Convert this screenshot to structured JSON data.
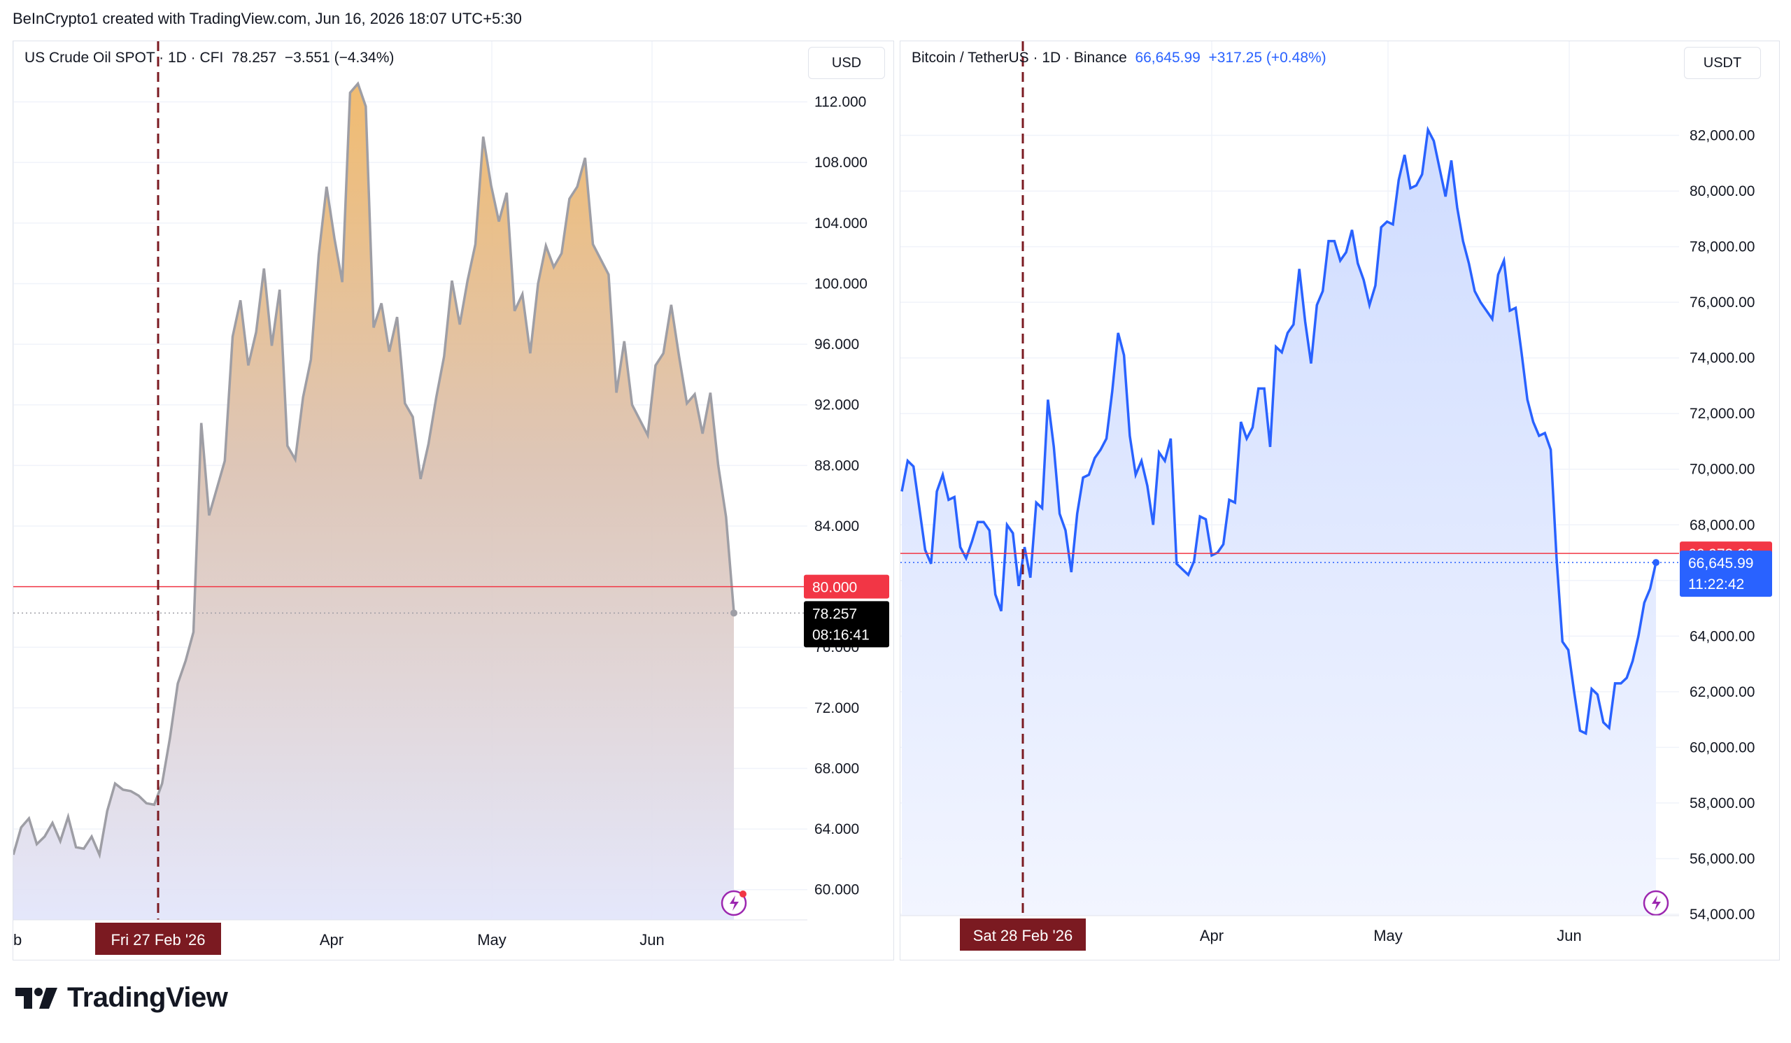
{
  "credit": "BeInCrypto1 created with TradingView.com, Jun 16, 2026 18:07 UTC+5:30",
  "brand": "TradingView",
  "colors": {
    "oil_line": "#9e9ea5",
    "oil_top": "#f0b869",
    "oil_bottom": "#e3e6fb",
    "btc_line": "#2962ff",
    "btc_fill": "#dbe4ff",
    "ref_line": "#f23645",
    "vline": "#7b1a21",
    "price_tag_dark": "#000000",
    "price_tag_blue": "#2962ff"
  },
  "oil": {
    "title": "US Crude Oil SPOT · 1D · CFI",
    "price": "78.257",
    "change": "−3.551 (−4.34%)",
    "currency": "USD",
    "ref_label": "80.000",
    "last_label": "78.257",
    "countdown": "08:16:41",
    "event_date": "Fri 27 Feb '26",
    "x_labels": [
      "eb",
      "Apr",
      "May",
      "Jun"
    ]
  },
  "btc": {
    "title": "Bitcoin / TetherUS · 1D · Binance",
    "price": "66,645.99",
    "change": "+317.25 (+0.48%)",
    "currency": "USDT",
    "ref_label": "66,973.00",
    "last_label": "66,645.99",
    "countdown": "11:22:42",
    "event_date": "Sat 28 Feb '26",
    "x_labels": [
      "Apr",
      "May",
      "Jun"
    ]
  },
  "chart_data": [
    {
      "type": "area",
      "title": "US Crude Oil SPOT · 1D · CFI",
      "currency": "USD",
      "ylim": [
        58,
        116
      ],
      "y_ticks": [
        "60.000",
        "64.000",
        "68.000",
        "72.000",
        "76.000",
        "80.000",
        "84.000",
        "88.000",
        "92.000",
        "96.000",
        "100.000",
        "104.000",
        "108.000",
        "112.000"
      ],
      "x_ticks": [
        "eb",
        "Apr",
        "May",
        "Jun"
      ],
      "reference_line": 80.0,
      "event_marker": "Fri 27 Feb '26",
      "last": 78.257,
      "series": [
        {
          "values": [
            62.3,
            64.1,
            64.7,
            63.0,
            63.5,
            64.4,
            63.2,
            64.8,
            62.8,
            62.7,
            63.5,
            62.3,
            65.2,
            67.0,
            66.6,
            66.5,
            66.2,
            65.7,
            65.6,
            67.0,
            70.0,
            73.6,
            75.1,
            77.0,
            90.8,
            84.7,
            86.5,
            88.3,
            96.5,
            98.9,
            94.6,
            96.8,
            101.0,
            95.9,
            99.6,
            89.3,
            88.4,
            92.5,
            95.0,
            101.9,
            106.4,
            103.0,
            100.1,
            112.6,
            113.2,
            111.7,
            97.1,
            98.7,
            95.5,
            97.8,
            92.1,
            91.2,
            87.1,
            89.4,
            92.5,
            95.2,
            100.2,
            97.3,
            100.2,
            102.6,
            109.7,
            106.5,
            104.1,
            106.0,
            98.2,
            99.3,
            95.4,
            100.0,
            102.5,
            101.1,
            102.0,
            105.6,
            106.4,
            108.3,
            102.6,
            101.6,
            100.6,
            92.8,
            96.2,
            92.0,
            91.0,
            90.0,
            94.6,
            95.4,
            98.6,
            95.2,
            92.1,
            92.7,
            90.1,
            92.8,
            88.0,
            84.6,
            78.3
          ]
        }
      ]
    },
    {
      "type": "line",
      "title": "Bitcoin / TetherUS · 1D · Binance",
      "currency": "USDT",
      "ylim": [
        54000,
        84000
      ],
      "y_ticks": [
        "54,000.00",
        "56,000.00",
        "58,000.00",
        "60,000.00",
        "62,000.00",
        "64,000.00",
        "66,000.00",
        "68,000.00",
        "70,000.00",
        "72,000.00",
        "74,000.00",
        "76,000.00",
        "78,000.00",
        "80,000.00",
        "82,000.00"
      ],
      "x_ticks": [
        "Apr",
        "May",
        "Jun"
      ],
      "reference_line": 66973.0,
      "event_marker": "Sat 28 Feb '26",
      "last": 66645.99,
      "series": [
        {
          "values": [
            69200,
            70300,
            70100,
            68600,
            67100,
            66600,
            69200,
            69800,
            68900,
            69000,
            67200,
            66800,
            67400,
            68100,
            68100,
            67800,
            65500,
            64900,
            68000,
            67700,
            65800,
            67200,
            66100,
            68800,
            68600,
            72500,
            70800,
            68400,
            67800,
            66300,
            68400,
            69700,
            69800,
            70400,
            70700,
            71100,
            72800,
            74900,
            74100,
            71200,
            69800,
            70300,
            69400,
            68000,
            70600,
            70300,
            71100,
            66600,
            66400,
            66200,
            66700,
            68300,
            68200,
            66900,
            67000,
            67300,
            68900,
            68800,
            71700,
            71100,
            71500,
            72900,
            72900,
            70800,
            74400,
            74200,
            74900,
            75200,
            77200,
            75300,
            73800,
            75900,
            76400,
            78200,
            78200,
            77500,
            77800,
            78600,
            77400,
            76800,
            75900,
            76600,
            78700,
            78900,
            78800,
            80400,
            81300,
            80100,
            80200,
            80600,
            82200,
            81800,
            80800,
            79800,
            81100,
            79400,
            78200,
            77400,
            76400,
            76000,
            75700,
            75400,
            77000,
            77500,
            75700,
            75800,
            74200,
            72500,
            71700,
            71200,
            71300,
            70700,
            66800,
            63800,
            63500,
            62000,
            60600,
            60500,
            62100,
            61900,
            60900,
            60700,
            62300,
            62300,
            62500,
            63100,
            64000,
            65200,
            65700,
            66646
          ]
        }
      ]
    }
  ]
}
